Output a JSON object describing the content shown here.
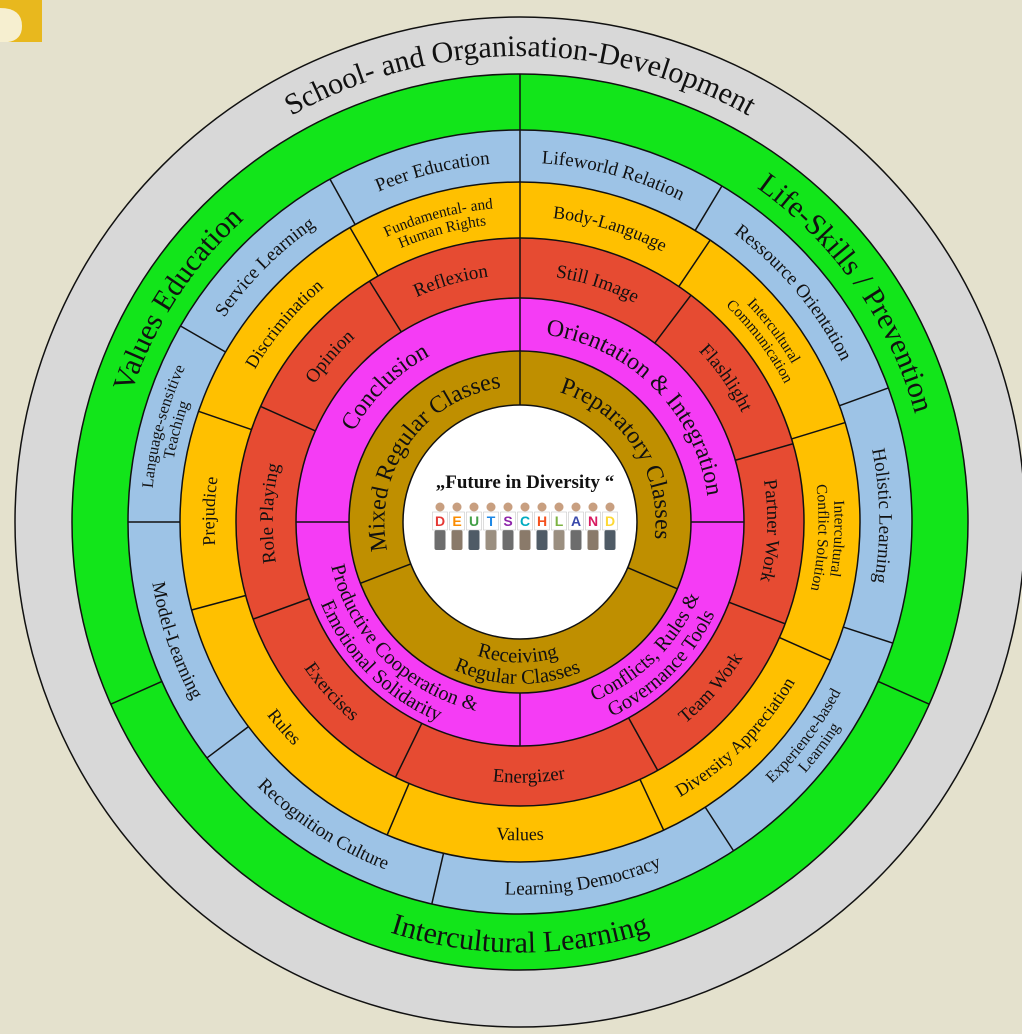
{
  "rings": [
    {
      "segments": [
        {
          "lines": [
            "School- and Organisation-Development"
          ]
        }
      ]
    },
    {
      "segments": [
        {
          "lines": [
            "Values Education"
          ]
        },
        {
          "lines": [
            "Life-Skills / Prevention"
          ]
        },
        {
          "lines": [
            "Intercultural Learning"
          ]
        }
      ]
    },
    {
      "segments": [
        {
          "lines": [
            "Peer Education"
          ]
        },
        {
          "lines": [
            "Lifeworld Relation"
          ]
        },
        {
          "lines": [
            "Ressource Orientation"
          ]
        },
        {
          "lines": [
            "Holistic Learning"
          ]
        },
        {
          "lines": [
            "Experience-based",
            "Learning"
          ]
        },
        {
          "lines": [
            "Learning Democracy"
          ]
        },
        {
          "lines": [
            "Recognition Culture"
          ]
        },
        {
          "lines": [
            "Model-Learning"
          ]
        },
        {
          "lines": [
            "Language-sensitive",
            "Teaching"
          ]
        },
        {
          "lines": [
            "Service Learning"
          ]
        }
      ]
    },
    {
      "segments": [
        {
          "lines": [
            "Fundamental- and",
            "Human Rights"
          ]
        },
        {
          "lines": [
            "Body-Language"
          ]
        },
        {
          "lines": [
            "Intercultural",
            "Communication"
          ]
        },
        {
          "lines": [
            "Intercultural",
            "Conflict Solution"
          ]
        },
        {
          "lines": [
            "Diversity Appreciation"
          ]
        },
        {
          "lines": [
            "Values"
          ]
        },
        {
          "lines": [
            "Rules"
          ]
        },
        {
          "lines": [
            "Prejudice"
          ]
        },
        {
          "lines": [
            "Discrimination"
          ]
        }
      ]
    },
    {
      "segments": [
        {
          "lines": [
            "Reflexion"
          ]
        },
        {
          "lines": [
            "Still Image"
          ]
        },
        {
          "lines": [
            "Flashlight"
          ]
        },
        {
          "lines": [
            "Partner Work"
          ]
        },
        {
          "lines": [
            "Team Work"
          ]
        },
        {
          "lines": [
            "Energizer"
          ]
        },
        {
          "lines": [
            "Exercises"
          ]
        },
        {
          "lines": [
            "Role Playing"
          ]
        },
        {
          "lines": [
            "Opinion"
          ]
        }
      ]
    },
    {
      "segments": [
        {
          "lines": [
            "Conclusion"
          ]
        },
        {
          "lines": [
            "Orientation & Integration"
          ]
        },
        {
          "lines": [
            "Conflicts, Rules &",
            "Governance Tools"
          ]
        },
        {
          "lines": [
            "Productive Cooperation &",
            "Emotional Solidarity"
          ]
        }
      ]
    },
    {
      "segments": [
        {
          "lines": [
            "Mixed Regular Classes"
          ]
        },
        {
          "lines": [
            "Preparatory Classes"
          ]
        },
        {
          "lines": [
            "Receiving",
            "Regular Classes"
          ]
        }
      ]
    }
  ],
  "center": {
    "title": "„Future in Diversity “",
    "letters": [
      "D",
      "E",
      "U",
      "T",
      "S",
      "C",
      "H",
      "L",
      "A",
      "N",
      "D"
    ]
  }
}
